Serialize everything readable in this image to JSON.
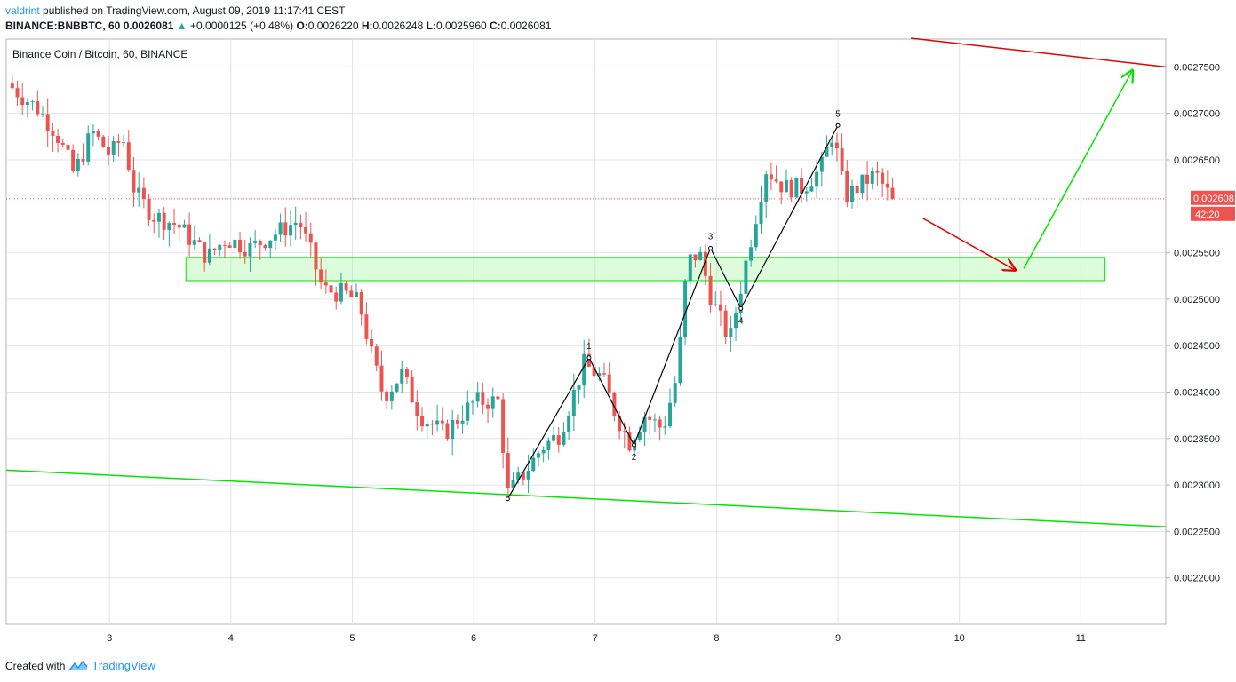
{
  "header": {
    "author": "valdrint",
    "published_text": "published on TradingView.com, August 09, 2019 11:17:41 CEST",
    "symbol": "BINANCE:BNBBTC, 60",
    "price": "0.0026081",
    "change_arrow": "▲",
    "change": "+0.0000125 (+0.48%)",
    "o_label": "O:",
    "o_value": "0.0026220",
    "h_label": "H:",
    "h_value": "0.0026248",
    "l_label": "L:",
    "l_value": "0.0025960",
    "c_label": "C:",
    "c_value": "0.0026081"
  },
  "footer": {
    "created_with": "Created with",
    "brand": "TradingView"
  },
  "colors": {
    "bull": "#26a69a",
    "bear": "#ef5350",
    "grid": "#e0e3eb",
    "support": "#00e600",
    "resistance": "#e60000",
    "zone": "#9cf59c",
    "wave": "#000000"
  },
  "chart_data": {
    "type": "candlestick",
    "legend": "Binance Coin / Bitcoin, 60, BINANCE",
    "x_ticks": [
      "3",
      "4",
      "5",
      "6",
      "7",
      "8",
      "9",
      "10",
      "11"
    ],
    "y_ticks": [
      "0.0027500",
      "0.0027000",
      "0.0026500",
      "0.0025500",
      "0.0025000",
      "0.0024500",
      "0.0024000",
      "0.0023500",
      "0.0023000",
      "0.0022500",
      "0.0022000"
    ],
    "ylim": [
      0.00215,
      0.00278
    ],
    "xlim": [
      2.15,
      11.7
    ],
    "last_price_label": "0.0026081",
    "countdown_label": "42:20",
    "last_price": 0.0026081,
    "price_path": [
      [
        2.2,
        0.002732
      ],
      [
        2.45,
        0.002705
      ],
      [
        2.6,
        0.00268
      ],
      [
        2.75,
        0.002635
      ],
      [
        2.9,
        0.00268
      ],
      [
        3.05,
        0.002655
      ],
      [
        3.15,
        0.002675
      ],
      [
        3.25,
        0.002615
      ],
      [
        3.4,
        0.00259
      ],
      [
        3.6,
        0.00258
      ],
      [
        3.85,
        0.002545
      ],
      [
        4.0,
        0.002565
      ],
      [
        4.2,
        0.002555
      ],
      [
        4.4,
        0.00257
      ],
      [
        4.6,
        0.002585
      ],
      [
        4.7,
        0.00255
      ],
      [
        4.8,
        0.00251
      ],
      [
        5.0,
        0.002505
      ],
      [
        5.1,
        0.002495
      ],
      [
        5.2,
        0.00244
      ],
      [
        5.3,
        0.002395
      ],
      [
        5.45,
        0.00242
      ],
      [
        5.6,
        0.002375
      ],
      [
        5.8,
        0.002355
      ],
      [
        5.9,
        0.00237
      ],
      [
        6.05,
        0.00239
      ],
      [
        6.25,
        0.00239
      ],
      [
        6.32,
        0.00229
      ],
      [
        6.5,
        0.00232
      ],
      [
        6.6,
        0.00234
      ],
      [
        6.75,
        0.002355
      ],
      [
        6.95,
        0.00243
      ],
      [
        7.1,
        0.002415
      ],
      [
        7.2,
        0.00238
      ],
      [
        7.32,
        0.002345
      ],
      [
        7.45,
        0.002375
      ],
      [
        7.6,
        0.00236
      ],
      [
        7.72,
        0.00242
      ],
      [
        7.8,
        0.00254
      ],
      [
        7.9,
        0.00255
      ],
      [
        8.0,
        0.0025
      ],
      [
        8.15,
        0.002455
      ],
      [
        8.3,
        0.00255
      ],
      [
        8.45,
        0.00264
      ],
      [
        8.6,
        0.00262
      ],
      [
        8.75,
        0.00262
      ],
      [
        8.9,
        0.00264
      ],
      [
        9.0,
        0.00268
      ],
      [
        9.1,
        0.00261
      ],
      [
        9.25,
        0.002625
      ],
      [
        9.35,
        0.002635
      ],
      [
        9.48,
        0.0026081
      ]
    ],
    "support_line": {
      "x": [
        2.15,
        11.7
      ],
      "y": [
        0.002316,
        0.002255
      ]
    },
    "resistance_line": {
      "x": [
        9.6,
        11.7
      ],
      "y": [
        0.002781,
        0.00275
      ]
    },
    "zone": {
      "x": [
        3.63,
        11.2
      ],
      "y": [
        0.00252,
        0.002545
      ]
    },
    "wave": {
      "x": [
        6.28,
        6.95,
        7.32,
        7.95,
        8.2,
        9.0
      ],
      "y": [
        0.002285,
        0.002437,
        0.002343,
        0.002555,
        0.00249,
        0.002687
      ],
      "labels": [
        "",
        "1",
        "2",
        "3",
        "4",
        "5"
      ]
    },
    "red_arrow": {
      "x": [
        9.7,
        10.45
      ],
      "y": [
        0.002587,
        0.002532
      ]
    },
    "green_arrow": {
      "x": [
        10.53,
        11.42
      ],
      "y": [
        0.002533,
        0.002745
      ]
    }
  }
}
